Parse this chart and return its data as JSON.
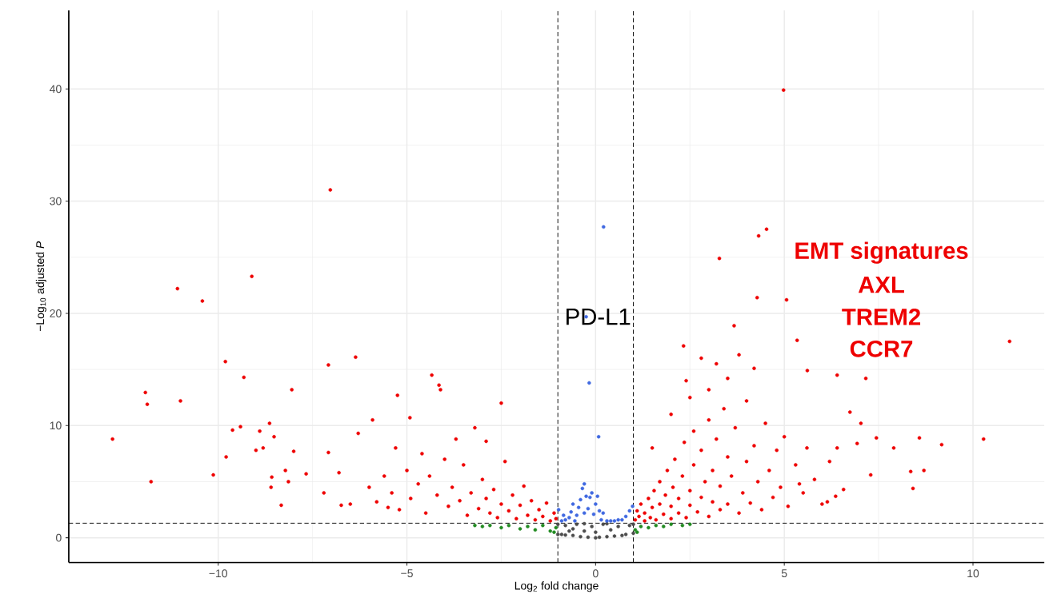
{
  "chart_data": {
    "type": "scatter",
    "xlabel": "Log$_{2}$ fold change",
    "ylabel": "−Log$_{10}$ adjusted *P*",
    "xlim": [
      -13.96,
      11.89
    ],
    "ylim": [
      -2.2,
      47
    ],
    "xticks": [
      {
        "value": -10,
        "label": "−10"
      },
      {
        "value": -5,
        "label": "−5"
      },
      0,
      5,
      10
    ],
    "yticks": [
      0,
      10,
      20,
      30,
      40
    ],
    "grid": true,
    "marker": "circle",
    "ref_lines": [
      {
        "axis": "x",
        "value": -1,
        "line_style": "dashed"
      },
      {
        "axis": "x",
        "value": 1,
        "line_style": "dashed"
      },
      {
        "axis": "y",
        "value": 1.3,
        "line_style": "dashed"
      }
    ],
    "annotations": [
      {
        "text": "PD-L1",
        "x": -0.25,
        "y": 19.7
      },
      "EMT signatures",
      "AXL",
      "TREM2",
      "CCR7"
    ],
    "series": [
      {
        "color": "#4d4d4d",
        "x": [
          -1.0,
          -1.0,
          -0.9,
          -0.8,
          -0.8,
          -0.6,
          -0.6,
          -0.5,
          -0.4,
          -0.3,
          -0.2,
          -0.1,
          0.0,
          0.0,
          0.1,
          0.2,
          0.3,
          0.4,
          0.5,
          0.6,
          0.7,
          0.8,
          0.9,
          1.0,
          1.0,
          -0.7,
          0.3,
          -0.3
        ],
        "values": [
          0.3,
          1.2,
          0.3,
          0.25,
          1.1,
          0.2,
          0.8,
          1.2,
          0.1,
          0.6,
          0.05,
          1.0,
          0.0,
          0.5,
          0.05,
          1.2,
          0.1,
          0.7,
          0.15,
          1.0,
          0.2,
          0.3,
          1.1,
          0.4,
          1.2,
          0.6,
          1.25,
          1.25
        ]
      },
      {
        "color": "#228b22",
        "x": [
          -3.2,
          -3.0,
          -2.8,
          -2.5,
          -2.3,
          -2.0,
          -1.8,
          -1.6,
          -1.4,
          -1.2,
          -1.05,
          1.05,
          1.2,
          1.4,
          1.6,
          1.8,
          2.0,
          2.3,
          2.5,
          -1.1,
          1.1
        ],
        "values": [
          1.1,
          1.0,
          1.1,
          0.9,
          1.1,
          0.8,
          1.0,
          0.7,
          1.1,
          0.6,
          0.9,
          0.7,
          1.0,
          0.9,
          1.1,
          1.0,
          1.2,
          1.1,
          1.2,
          0.5,
          0.5
        ]
      },
      {
        "color": "#4169e1",
        "x": [
          -0.98,
          -0.9,
          -0.85,
          -0.8,
          -0.7,
          -0.65,
          -0.6,
          -0.55,
          -0.5,
          -0.45,
          -0.4,
          -0.35,
          -0.3,
          -0.3,
          -0.25,
          -0.2,
          -0.15,
          -0.1,
          -0.05,
          0.0,
          0.05,
          0.1,
          0.15,
          0.2,
          0.3,
          0.4,
          0.5,
          0.6,
          0.7,
          0.8,
          0.9,
          0.98,
          -0.25,
          0.21,
          -0.17,
          0.08
        ],
        "values": [
          2.5,
          1.5,
          2.0,
          1.6,
          1.8,
          2.3,
          3.0,
          1.5,
          2.0,
          2.7,
          3.4,
          4.4,
          4.8,
          2.2,
          3.7,
          2.6,
          3.6,
          4.0,
          2.1,
          3.0,
          3.7,
          2.4,
          1.6,
          2.2,
          1.5,
          1.5,
          1.5,
          1.6,
          1.6,
          1.9,
          2.4,
          2.8,
          19.7,
          27.7,
          13.8,
          9.0
        ]
      },
      {
        "color": "#ee0000",
        "x": [
          -12.8,
          -11.93,
          -11.88,
          -11.78,
          -11.08,
          -11.0,
          -10.42,
          -10.13,
          -9.81,
          -9.79,
          -9.62,
          -9.41,
          -9.32,
          -9.11,
          -9.0,
          -8.9,
          -8.81,
          -8.64,
          -8.58,
          -8.6,
          -8.52,
          -8.33,
          -8.22,
          -8.14,
          -8.05,
          -8.0,
          -7.67,
          -7.08,
          -7.08,
          -7.03,
          -6.74,
          -6.36,
          -6.29,
          -5.91,
          -5.5,
          -5.25,
          -4.92,
          -4.34,
          -4.15,
          -4.11,
          -2.5,
          -3.2,
          -6.0,
          -5.8,
          -5.6,
          -5.4,
          -5.2,
          -5.0,
          -4.9,
          -4.7,
          -4.5,
          -4.4,
          -4.2,
          -4.0,
          -3.9,
          -3.8,
          -3.6,
          -3.5,
          -3.4,
          -3.3,
          -3.1,
          -3.0,
          -2.9,
          -2.8,
          -2.7,
          -2.6,
          -2.5,
          -2.4,
          -2.3,
          -2.2,
          -2.1,
          -2.0,
          -1.9,
          -1.8,
          -1.7,
          -1.6,
          -1.5,
          -1.4,
          -1.3,
          -1.2,
          -1.1,
          -1.05,
          -6.5,
          -7.2,
          -6.8,
          -5.3,
          -4.6,
          -3.7,
          -2.9,
          4.98,
          4.53,
          4.32,
          3.28,
          4.28,
          5.06,
          3.67,
          2.33,
          5.34,
          10.97,
          6.4,
          7.16,
          5.61,
          7.44,
          7.9,
          8.58,
          9.17,
          10.28,
          8.35,
          8.7,
          8.41,
          7.29,
          7.03,
          6.74,
          6.4,
          6.93,
          6.57,
          6.36,
          5.4,
          6.14,
          1.05,
          1.1,
          1.15,
          1.2,
          1.3,
          1.3,
          1.4,
          1.45,
          1.5,
          1.55,
          1.6,
          1.7,
          1.7,
          1.8,
          1.85,
          1.9,
          2.0,
          2.0,
          2.05,
          2.1,
          2.2,
          2.2,
          2.3,
          2.35,
          2.4,
          2.5,
          2.5,
          2.6,
          2.6,
          2.7,
          2.8,
          2.8,
          2.9,
          3.0,
          3.0,
          3.1,
          3.1,
          3.2,
          3.3,
          3.3,
          3.4,
          3.5,
          3.5,
          3.6,
          3.7,
          3.8,
          3.9,
          4.0,
          4.0,
          4.1,
          4.2,
          4.3,
          4.4,
          4.5,
          4.6,
          4.7,
          4.8,
          4.9,
          5.0,
          5.1,
          5.3,
          5.5,
          5.6,
          5.8,
          6.0,
          6.2,
          2.5,
          3.0,
          3.5,
          2.0,
          1.5,
          2.8,
          3.8,
          4.2,
          3.2,
          2.4
        ],
        "values": [
          8.8,
          12.95,
          11.9,
          5.0,
          22.2,
          12.2,
          21.1,
          5.6,
          15.7,
          7.2,
          9.6,
          9.9,
          14.3,
          23.3,
          7.8,
          9.5,
          8.0,
          10.2,
          5.4,
          4.5,
          9.0,
          2.9,
          6.0,
          5.0,
          13.2,
          7.7,
          5.7,
          7.6,
          15.4,
          31.0,
          2.9,
          16.1,
          9.3,
          10.5,
          2.7,
          12.7,
          10.7,
          14.5,
          13.6,
          13.2,
          12.0,
          9.8,
          4.5,
          3.2,
          5.5,
          4.0,
          2.5,
          6.0,
          3.5,
          4.8,
          2.2,
          5.5,
          3.8,
          7.0,
          2.8,
          4.5,
          3.3,
          6.5,
          2.0,
          4.0,
          2.6,
          5.2,
          3.5,
          2.2,
          4.3,
          1.8,
          3.0,
          6.8,
          2.4,
          3.8,
          1.7,
          2.9,
          4.6,
          2.0,
          3.3,
          1.6,
          2.5,
          1.9,
          3.1,
          1.5,
          2.2,
          1.7,
          3.0,
          4.0,
          5.8,
          8.0,
          7.5,
          8.8,
          8.6,
          39.9,
          27.5,
          26.9,
          24.9,
          21.4,
          21.2,
          18.9,
          17.1,
          17.6,
          17.5,
          14.5,
          14.2,
          14.9,
          8.9,
          8.0,
          8.9,
          8.3,
          8.8,
          5.9,
          6.0,
          4.4,
          5.6,
          10.2,
          11.2,
          8.0,
          8.4,
          4.3,
          3.7,
          4.8,
          3.2,
          1.6,
          2.4,
          1.9,
          3.0,
          1.5,
          2.2,
          3.5,
          1.8,
          2.7,
          4.2,
          1.6,
          3.0,
          5.0,
          2.1,
          3.8,
          6.0,
          1.7,
          2.8,
          4.5,
          7.0,
          2.2,
          3.5,
          5.5,
          8.5,
          1.8,
          2.9,
          4.2,
          6.5,
          9.5,
          2.3,
          3.6,
          7.8,
          5.0,
          1.9,
          10.5,
          3.2,
          6.0,
          8.8,
          2.5,
          4.6,
          11.5,
          7.2,
          3.0,
          5.5,
          9.8,
          2.2,
          4.0,
          6.8,
          12.2,
          3.1,
          8.2,
          5.0,
          2.5,
          10.2,
          6.0,
          3.6,
          7.8,
          4.5,
          9.0,
          2.8,
          6.5,
          4.0,
          8.0,
          5.2,
          3.0,
          6.8,
          12.5,
          13.2,
          14.2,
          11.0,
          8.0,
          16.0,
          16.3,
          15.1,
          15.5,
          14.0
        ]
      }
    ]
  }
}
